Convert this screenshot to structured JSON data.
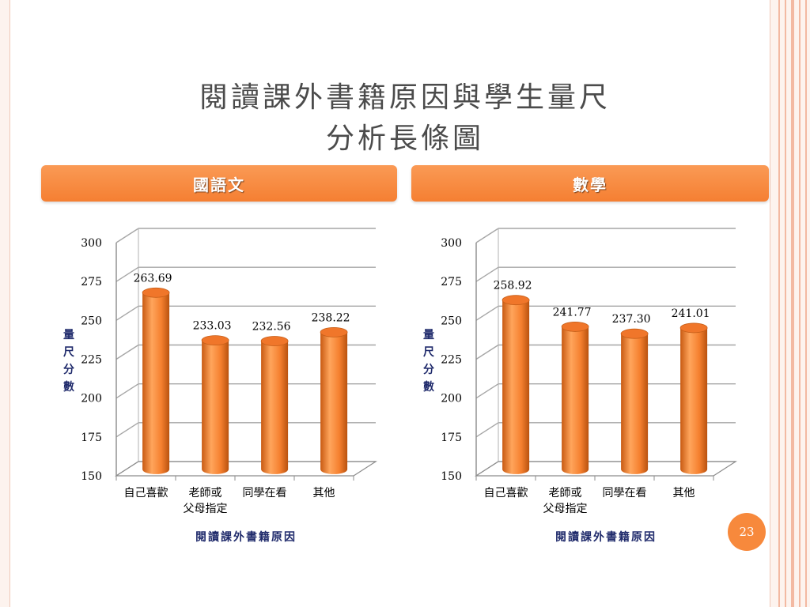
{
  "slide": {
    "title_line1": "閱讀課外書籍原因與學生量尺",
    "title_line2": "分析長條圖",
    "page_number": "23"
  },
  "panels": [
    {
      "header": "國語文"
    },
    {
      "header": "數學"
    }
  ],
  "colors": {
    "bar": "#f5802f",
    "header": "#f7893c",
    "axis_label": "#1f2a6b",
    "title": "#4b4b4b"
  },
  "chart_data": [
    {
      "type": "bar",
      "title": "國語文",
      "categories": [
        [
          "自己喜歡"
        ],
        [
          "老師或",
          "父母指定"
        ],
        [
          "同學在看"
        ],
        [
          "其他"
        ]
      ],
      "values": [
        263.69,
        233.03,
        232.56,
        238.22
      ],
      "value_labels": [
        "263.69",
        "233.03",
        "232.56",
        "238.22"
      ],
      "yticks": [
        "300",
        "275",
        "250",
        "225",
        "200",
        "175",
        "150"
      ],
      "xlabel": "閱讀課外書籍原因",
      "ylabel": "量尺分數",
      "ylim": [
        150,
        300
      ],
      "grid": true
    },
    {
      "type": "bar",
      "title": "數學",
      "categories": [
        [
          "自己喜歡"
        ],
        [
          "老師或",
          "父母指定"
        ],
        [
          "同學在看"
        ],
        [
          "其他"
        ]
      ],
      "values": [
        258.92,
        241.77,
        237.3,
        241.01
      ],
      "value_labels": [
        "258.92",
        "241.77",
        "237.30",
        "241.01"
      ],
      "yticks": [
        "300",
        "275",
        "250",
        "225",
        "200",
        "175",
        "150"
      ],
      "xlabel": "閱讀課外書籍原因",
      "ylabel": "量尺分數",
      "ylim": [
        150,
        300
      ],
      "grid": true
    }
  ]
}
